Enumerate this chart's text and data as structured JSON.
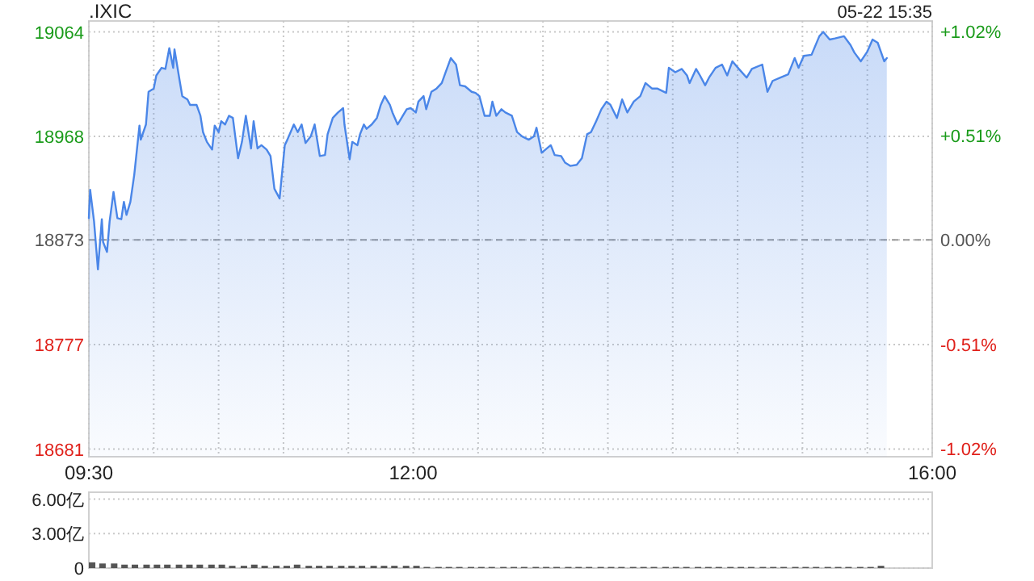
{
  "chart_data": [
    {
      "type": "area",
      "title": ".IXIC",
      "annotations": [
        "05-22 15:35"
      ],
      "color": "#4a86e8",
      "x": [
        9.5,
        9.51,
        9.54,
        9.57,
        9.6,
        9.61,
        9.64,
        9.66,
        9.69,
        9.72,
        9.75,
        9.77,
        9.79,
        9.82,
        9.85,
        9.89,
        9.9,
        9.94,
        9.96,
        10.0,
        10.02,
        10.06,
        10.09,
        10.12,
        10.15,
        10.16,
        10.2,
        10.22,
        10.26,
        10.28,
        10.33,
        10.36,
        10.38,
        10.41,
        10.45,
        10.47,
        10.5,
        10.52,
        10.55,
        10.58,
        10.61,
        10.65,
        10.68,
        10.71,
        10.75,
        10.77,
        10.8,
        10.83,
        10.87,
        10.9,
        10.93,
        10.97,
        11.01,
        11.03,
        11.08,
        11.11,
        11.14,
        11.17,
        11.21,
        11.24,
        11.28,
        11.32,
        11.34,
        11.38,
        11.42,
        11.46,
        11.47,
        11.51,
        11.53,
        11.57,
        11.59,
        11.62,
        11.64,
        11.68,
        11.72,
        11.75,
        11.78,
        11.82,
        11.84,
        11.88,
        11.92,
        11.95,
        11.98,
        12.02,
        12.04,
        12.08,
        12.1,
        12.14,
        12.18,
        12.22,
        12.25,
        12.29,
        12.33,
        12.36,
        12.4,
        12.45,
        12.48,
        12.51,
        12.55,
        12.59,
        12.61,
        12.64,
        12.68,
        12.71,
        12.76,
        12.8,
        12.84,
        12.89,
        12.93,
        12.95,
        12.99,
        13.03,
        13.06,
        13.09,
        13.14,
        13.17,
        13.21,
        13.26,
        13.3,
        13.34,
        13.37,
        13.41,
        13.45,
        13.49,
        13.52,
        13.57,
        13.61,
        13.65,
        13.7,
        13.75,
        13.79,
        13.84,
        13.88,
        13.95,
        13.97,
        14.02,
        14.07,
        14.11,
        14.13,
        14.18,
        14.21,
        14.25,
        14.28,
        14.33,
        14.38,
        14.42,
        14.46,
        14.51,
        14.57,
        14.61,
        14.69,
        14.73,
        14.77,
        14.83,
        14.89,
        14.94,
        14.97,
        15.01,
        15.07,
        15.13,
        15.16,
        15.21,
        15.25,
        15.32,
        15.37,
        15.4,
        15.45,
        15.5,
        15.54,
        15.58,
        15.63,
        15.65
      ],
      "values": [
        18893,
        18919,
        18890,
        18846,
        18892,
        18871,
        18862,
        18890,
        18917,
        18893,
        18892,
        18908,
        18896,
        18908,
        18933,
        18978,
        18965,
        18979,
        19009,
        19012,
        19024,
        19031,
        19030,
        19049,
        19031,
        19048,
        19019,
        19005,
        19002,
        18997,
        18997,
        18987,
        18972,
        18963,
        18956,
        18978,
        18972,
        18982,
        18979,
        18987,
        18985,
        18948,
        18963,
        18987,
        18957,
        18982,
        18957,
        18960,
        18956,
        18950,
        18920,
        18911,
        18960,
        18965,
        18979,
        18972,
        18979,
        18962,
        18968,
        18979,
        18950,
        18951,
        18970,
        18985,
        18990,
        18994,
        18979,
        18947,
        18963,
        18960,
        18970,
        18979,
        18975,
        18979,
        18985,
        18997,
        19005,
        18997,
        18990,
        18979,
        18987,
        18993,
        18994,
        18990,
        19000,
        19005,
        18993,
        19009,
        19012,
        19017,
        19027,
        19040,
        19034,
        19015,
        19014,
        19009,
        19008,
        19005,
        18987,
        18987,
        19000,
        18987,
        18993,
        18990,
        18987,
        18972,
        18968,
        18965,
        18968,
        18976,
        18953,
        18957,
        18960,
        18951,
        18950,
        18944,
        18941,
        18942,
        18948,
        18970,
        18972,
        18982,
        18993,
        19000,
        18997,
        18985,
        19002,
        18990,
        19000,
        19005,
        19017,
        19012,
        19012,
        19008,
        19031,
        19027,
        19030,
        19024,
        19017,
        19030,
        19024,
        19015,
        19022,
        19031,
        19034,
        19024,
        19037,
        19030,
        19022,
        19030,
        19034,
        19009,
        19019,
        19022,
        19025,
        19040,
        19031,
        19042,
        19043,
        19060,
        19064,
        19057,
        19058,
        19060,
        19052,
        19045,
        19037,
        19046,
        19057,
        19054,
        19037,
        19040
      ],
      "xlim": [
        9.5,
        16
      ],
      "xticks": [
        {
          "value": 9.5,
          "label": "09:30"
        },
        {
          "value": 10,
          "label": null
        },
        {
          "value": 10.5,
          "label": null
        },
        {
          "value": 11,
          "label": null
        },
        {
          "value": 11.5,
          "label": null
        },
        {
          "value": 12,
          "label": "12:00"
        },
        {
          "value": 12.5,
          "label": null
        },
        {
          "value": 13,
          "label": null
        },
        {
          "value": 13.5,
          "label": null
        },
        {
          "value": 14,
          "label": null
        },
        {
          "value": 14.5,
          "label": null
        },
        {
          "value": 15,
          "label": null
        },
        {
          "value": 15.5,
          "label": null
        },
        {
          "value": 16,
          "label": "16:00"
        }
      ],
      "ylim": [
        18674,
        19074
      ],
      "yticks": [
        18681,
        18777,
        18873,
        18968,
        19064
      ],
      "y2lim": [
        -1.06,
        1.07
      ],
      "y2ticks": [
        {
          "value": -1.02,
          "label": "-1.02%"
        },
        {
          "value": -0.51,
          "label": "-0.51%"
        },
        {
          "value": 0,
          "label": "0.00%"
        },
        {
          "value": 0.51,
          "label": "+0.51%"
        },
        {
          "value": 1.02,
          "label": "+1.02%"
        }
      ],
      "ref_lines": [
        {
          "axis": "y",
          "value": 18873,
          "color": "#999999",
          "line_style": "dashed"
        }
      ],
      "grid": true
    },
    {
      "type": "bar",
      "color": "#555555",
      "tick_labels": "y",
      "grid": "y",
      "x": [
        9.5,
        9.58,
        9.67,
        9.75,
        9.83,
        9.92,
        10,
        10.08,
        10.17,
        10.25,
        10.33,
        10.42,
        10.5,
        10.58,
        10.67,
        10.75,
        10.83,
        10.92,
        11,
        11.08,
        11.17,
        11.25,
        11.33,
        11.42,
        11.5,
        11.58,
        11.67,
        11.75,
        11.83,
        11.92,
        12,
        12.08,
        12.17,
        12.25,
        12.33,
        12.42,
        12.5,
        12.58,
        12.67,
        12.75,
        12.83,
        12.92,
        13,
        13.08,
        13.17,
        13.25,
        13.33,
        13.42,
        13.5,
        13.58,
        13.67,
        13.75,
        13.83,
        13.92,
        14,
        14.08,
        14.17,
        14.25,
        14.33,
        14.42,
        14.5,
        14.58,
        14.67,
        14.75,
        14.83,
        14.92,
        15,
        15.08,
        15.17,
        15.25,
        15.33,
        15.42,
        15.5,
        15.58
      ],
      "values": [
        0.5,
        0.4,
        0.4,
        0.3,
        0.3,
        0.3,
        0.3,
        0.3,
        0.3,
        0.3,
        0.3,
        0.3,
        0.3,
        0.2,
        0.2,
        0.3,
        0.2,
        0.2,
        0.2,
        0.3,
        0.2,
        0.2,
        0.2,
        0.2,
        0.2,
        0.2,
        0.2,
        0.2,
        0.2,
        0.2,
        0.2,
        0.1,
        0.1,
        0.1,
        0.1,
        0.1,
        0.1,
        0.1,
        0.1,
        0.1,
        0.1,
        0.1,
        0.1,
        0.1,
        0.1,
        0.1,
        0.1,
        0.1,
        0.1,
        0.1,
        0.1,
        0.1,
        0.1,
        0.1,
        0.1,
        0.1,
        0.1,
        0.1,
        0.1,
        0.1,
        0.1,
        0.1,
        0.1,
        0.1,
        0.1,
        0.1,
        0.1,
        0.1,
        0.1,
        0.1,
        0.1,
        0.1,
        0.1,
        0.2
      ],
      "xlim": [
        9.5,
        16
      ],
      "ylim": [
        0,
        6.6
      ],
      "yticks": [
        {
          "value": 0,
          "label": "0"
        },
        {
          "value": 3,
          "label": "3.00亿"
        },
        {
          "value": 6,
          "label": "6.00亿"
        }
      ]
    }
  ]
}
